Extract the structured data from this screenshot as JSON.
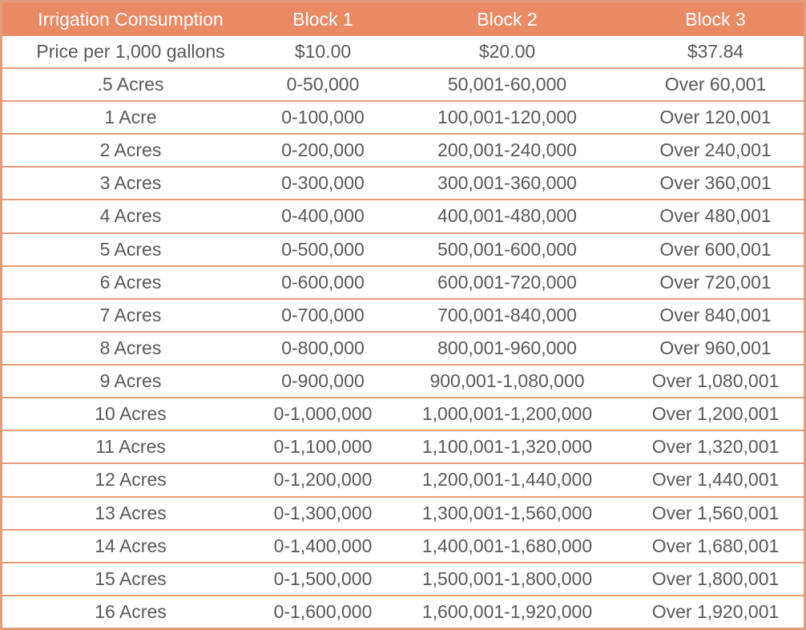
{
  "chart_data": {
    "type": "table",
    "title": "Irrigation Consumption",
    "columns": [
      "Irrigation Consumption",
      "Block 1",
      "Block 2",
      "Block 3"
    ],
    "rows": [
      [
        "Price per 1,000 gallons",
        "$10.00",
        "$20.00",
        "$37.84"
      ],
      [
        ".5 Acres",
        "0-50,000",
        "50,001-60,000",
        "Over 60,001"
      ],
      [
        "1 Acre",
        "0-100,000",
        "100,001-120,000",
        "Over 120,001"
      ],
      [
        "2 Acres",
        "0-200,000",
        "200,001-240,000",
        "Over 240,001"
      ],
      [
        "3 Acres",
        "0-300,000",
        "300,001-360,000",
        "Over 360,001"
      ],
      [
        "4 Acres",
        "0-400,000",
        "400,001-480,000",
        "Over 480,001"
      ],
      [
        "5 Acres",
        "0-500,000",
        "500,001-600,000",
        "Over 600,001"
      ],
      [
        "6 Acres",
        "0-600,000",
        "600,001-720,000",
        "Over 720,001"
      ],
      [
        "7 Acres",
        "0-700,000",
        "700,001-840,000",
        "Over 840,001"
      ],
      [
        "8 Acres",
        "0-800,000",
        "800,001-960,000",
        "Over 960,001"
      ],
      [
        "9 Acres",
        "0-900,000",
        "900,001-1,080,000",
        "Over 1,080,001"
      ],
      [
        "10 Acres",
        "0-1,000,000",
        "1,000,001-1,200,000",
        "Over 1,200,001"
      ],
      [
        "11 Acres",
        "0-1,100,000",
        "1,100,001-1,320,000",
        "Over 1,320,001"
      ],
      [
        "12 Acres",
        "0-1,200,000",
        "1,200,001-1,440,000",
        "Over 1,440,001"
      ],
      [
        "13 Acres",
        "0-1,300,000",
        "1,300,001-1,560,000",
        "Over 1,560,001"
      ],
      [
        "14 Acres",
        "0-1,400,000",
        "1,400,001-1,680,000",
        "Over 1,680,001"
      ],
      [
        "15 Acres",
        "0-1,500,000",
        "1,500,001-1,800,000",
        "Over 1,800,001"
      ],
      [
        "16 Acres",
        "0-1,600,000",
        "1,600,001-1,920,000",
        "Over 1,920,001"
      ]
    ],
    "layout": {
      "grid": "horizontal-dividers-only",
      "legend": "none",
      "header_row": true
    }
  },
  "colors": {
    "header_bg": "#EA8A64",
    "header_text": "#FFFFFF",
    "body_text": "#595959",
    "divider": "#E39D7D",
    "outer_border": "#E39D7D",
    "row_bg": "#FFFFFF"
  }
}
